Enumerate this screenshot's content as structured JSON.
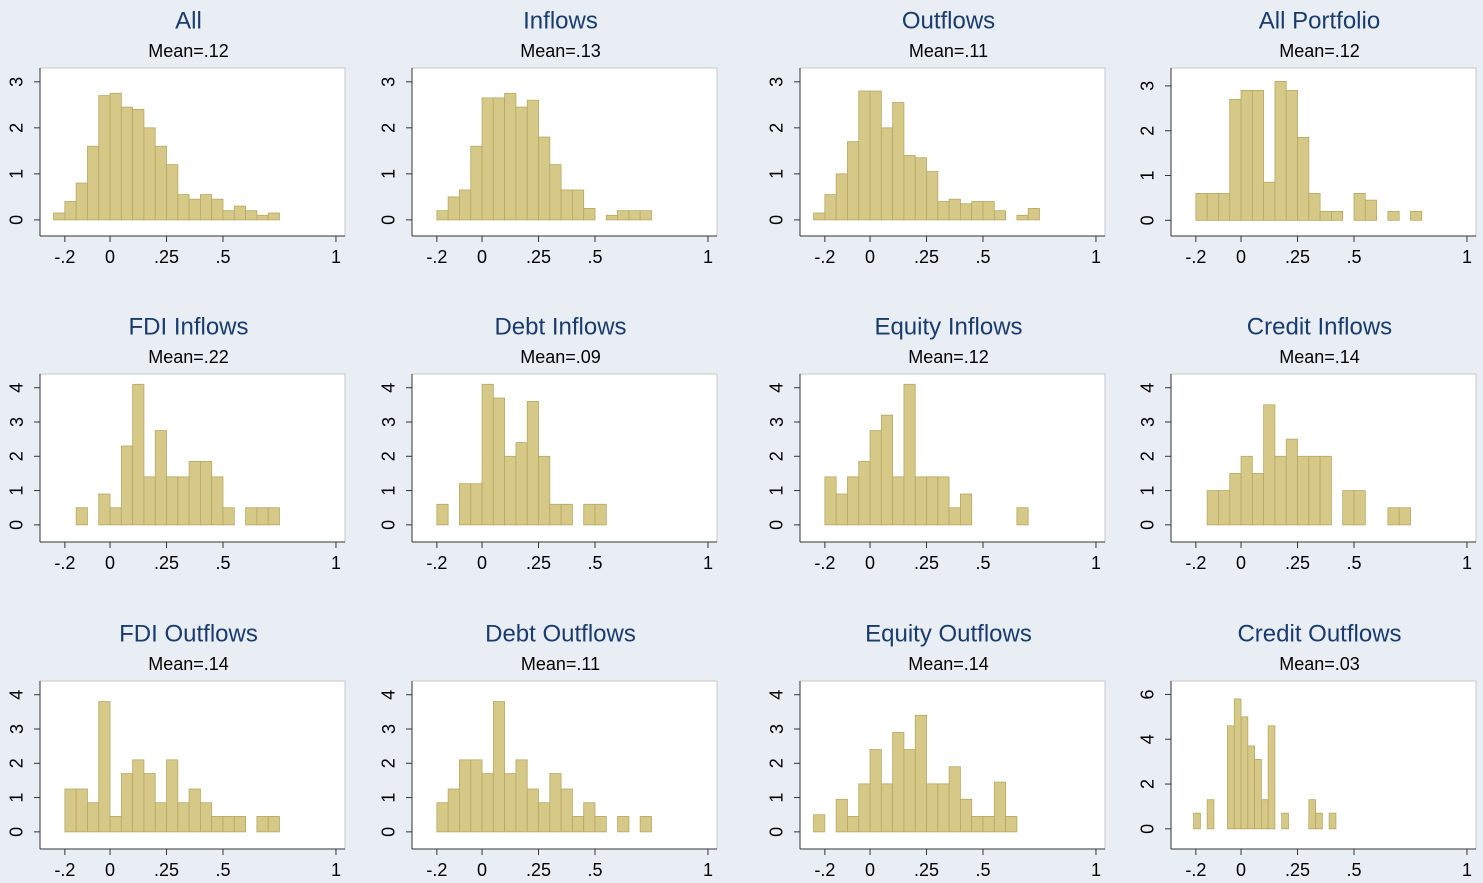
{
  "chart_data": [
    {
      "type": "histogram",
      "title": "All",
      "subtitle": "Mean=.12",
      "color": "#d6c987",
      "bins": [
        -0.25,
        -0.2,
        -0.15,
        -0.1,
        -0.05,
        0,
        0.05,
        0.1,
        0.15,
        0.2,
        0.25,
        0.3,
        0.35,
        0.4,
        0.45,
        0.5,
        0.55,
        0.6,
        0.65,
        0.7,
        0.75
      ],
      "values": [
        0.15,
        0.4,
        0.8,
        1.6,
        2.7,
        2.75,
        2.45,
        2.4,
        2.0,
        1.6,
        1.2,
        0.55,
        0.45,
        0.55,
        0.45,
        0.2,
        0.3,
        0.2,
        0.1,
        0.15
      ],
      "xlim": [
        -0.31,
        1.04
      ],
      "xticks": [
        {
          "value": -0.2,
          "label": "-.2"
        },
        0,
        {
          "value": 0.25,
          "label": ".25"
        },
        {
          "value": 0.5,
          "label": ".5"
        },
        1
      ],
      "ylim": [
        -0.35,
        3.3
      ],
      "yticks": [
        0,
        1,
        2,
        3
      ]
    },
    {
      "type": "histogram",
      "title": "Inflows",
      "subtitle": "Mean=.13",
      "color": "#d6c987",
      "bins": [
        -0.2,
        -0.15,
        -0.1,
        -0.05,
        0,
        0.05,
        0.1,
        0.15,
        0.2,
        0.25,
        0.3,
        0.35,
        0.4,
        0.45,
        0.5,
        0.55,
        0.6,
        0.65,
        0.7,
        0.75
      ],
      "values": [
        0.2,
        0.5,
        0.65,
        1.6,
        2.65,
        2.65,
        2.75,
        2.45,
        2.6,
        1.8,
        1.2,
        0.65,
        0.65,
        0.25,
        0,
        0.1,
        0.2,
        0.2,
        0.2
      ],
      "xlim": [
        -0.31,
        1.04
      ],
      "xticks": [
        {
          "value": -0.2,
          "label": "-.2"
        },
        0,
        {
          "value": 0.25,
          "label": ".25"
        },
        {
          "value": 0.5,
          "label": ".5"
        },
        1
      ],
      "ylim": [
        -0.35,
        3.3
      ],
      "yticks": [
        0,
        1,
        2,
        3
      ]
    },
    {
      "type": "histogram",
      "title": "Outflows",
      "subtitle": "Mean=.11",
      "color": "#d6c987",
      "bins": [
        -0.25,
        -0.2,
        -0.15,
        -0.1,
        -0.05,
        0,
        0.05,
        0.1,
        0.15,
        0.2,
        0.25,
        0.3,
        0.35,
        0.4,
        0.45,
        0.5,
        0.55,
        0.6,
        0.65,
        0.7,
        0.75
      ],
      "values": [
        0.15,
        0.55,
        1.0,
        1.7,
        2.8,
        2.8,
        2.0,
        2.55,
        1.4,
        1.35,
        1.05,
        0.4,
        0.45,
        0.35,
        0.4,
        0.4,
        0.2,
        0,
        0.1,
        0.25
      ],
      "xlim": [
        -0.31,
        1.04
      ],
      "xticks": [
        {
          "value": -0.2,
          "label": "-.2"
        },
        0,
        {
          "value": 0.25,
          "label": ".25"
        },
        {
          "value": 0.5,
          "label": ".5"
        },
        1
      ],
      "ylim": [
        -0.35,
        3.3
      ],
      "yticks": [
        0,
        1,
        2,
        3
      ]
    },
    {
      "type": "histogram",
      "title": "All Portfolio",
      "subtitle": "Mean=.12",
      "color": "#d6c987",
      "bins": [
        -0.2,
        -0.15,
        -0.1,
        -0.05,
        0,
        0.05,
        0.1,
        0.15,
        0.2,
        0.25,
        0.3,
        0.35,
        0.4,
        0.45,
        0.5,
        0.55,
        0.6,
        0.65,
        0.7,
        0.75,
        0.8
      ],
      "values": [
        0.6,
        0.6,
        0.6,
        2.7,
        2.9,
        2.9,
        0.85,
        3.1,
        2.9,
        1.85,
        0.6,
        0.2,
        0.2,
        0,
        0.6,
        0.45,
        0,
        0.2,
        0,
        0.2
      ],
      "xlim": [
        -0.31,
        1.04
      ],
      "xticks": [
        {
          "value": -0.2,
          "label": "-.2"
        },
        0,
        {
          "value": 0.25,
          "label": ".25"
        },
        {
          "value": 0.5,
          "label": ".5"
        },
        1
      ],
      "ylim": [
        -0.35,
        3.4
      ],
      "yticks": [
        0,
        1,
        2,
        3
      ]
    },
    {
      "type": "histogram",
      "title": "FDI Inflows",
      "subtitle": "Mean=.22",
      "color": "#d6c987",
      "bins": [
        -0.15,
        -0.1,
        -0.05,
        0,
        0.05,
        0.1,
        0.15,
        0.2,
        0.25,
        0.3,
        0.35,
        0.4,
        0.45,
        0.5,
        0.55,
        0.6,
        0.65,
        0.7,
        0.75
      ],
      "values": [
        0.5,
        0,
        0.9,
        0.5,
        2.3,
        4.1,
        1.4,
        2.75,
        1.4,
        1.4,
        1.85,
        1.85,
        1.4,
        0.5,
        0,
        0.5,
        0.5,
        0.5
      ],
      "xlim": [
        -0.31,
        1.04
      ],
      "xticks": [
        {
          "value": -0.2,
          "label": "-.2"
        },
        0,
        {
          "value": 0.25,
          "label": ".25"
        },
        {
          "value": 0.5,
          "label": ".5"
        },
        1
      ],
      "ylim": [
        -0.5,
        4.4
      ],
      "yticks": [
        0,
        1,
        2,
        3,
        4
      ]
    },
    {
      "type": "histogram",
      "title": "Debt Inflows",
      "subtitle": "Mean=.09",
      "color": "#d6c987",
      "bins": [
        -0.2,
        -0.15,
        -0.1,
        -0.05,
        0,
        0.05,
        0.1,
        0.15,
        0.2,
        0.25,
        0.3,
        0.35,
        0.4,
        0.45,
        0.5,
        0.55
      ],
      "values": [
        0.6,
        0,
        1.2,
        1.2,
        4.1,
        3.7,
        2.0,
        2.4,
        3.6,
        2.0,
        0.6,
        0.6,
        0,
        0.6,
        0.6
      ],
      "xlim": [
        -0.31,
        1.04
      ],
      "xticks": [
        {
          "value": -0.2,
          "label": "-.2"
        },
        0,
        {
          "value": 0.25,
          "label": ".25"
        },
        {
          "value": 0.5,
          "label": ".5"
        },
        1
      ],
      "ylim": [
        -0.5,
        4.4
      ],
      "yticks": [
        0,
        1,
        2,
        3,
        4
      ]
    },
    {
      "type": "histogram",
      "title": "Equity Inflows",
      "subtitle": "Mean=.12",
      "color": "#d6c987",
      "bins": [
        -0.2,
        -0.15,
        -0.1,
        -0.05,
        0,
        0.05,
        0.1,
        0.15,
        0.2,
        0.25,
        0.3,
        0.35,
        0.4,
        0.45,
        0.5,
        0.55,
        0.6,
        0.65,
        0.7
      ],
      "values": [
        1.4,
        0.9,
        1.4,
        1.85,
        2.75,
        3.2,
        1.4,
        4.1,
        1.4,
        1.4,
        1.4,
        0.5,
        0.9,
        0,
        0,
        0,
        0,
        0.5
      ],
      "xlim": [
        -0.31,
        1.04
      ],
      "xticks": [
        {
          "value": -0.2,
          "label": "-.2"
        },
        0,
        {
          "value": 0.25,
          "label": ".25"
        },
        {
          "value": 0.5,
          "label": ".5"
        },
        1
      ],
      "ylim": [
        -0.5,
        4.4
      ],
      "yticks": [
        0,
        1,
        2,
        3,
        4
      ]
    },
    {
      "type": "histogram",
      "title": "Credit Inflows",
      "subtitle": "Mean=.14",
      "color": "#d6c987",
      "bins": [
        -0.15,
        -0.1,
        -0.05,
        0,
        0.05,
        0.1,
        0.15,
        0.2,
        0.25,
        0.3,
        0.35,
        0.4,
        0.45,
        0.5,
        0.55,
        0.6,
        0.65,
        0.7,
        0.75
      ],
      "values": [
        1.0,
        1.0,
        1.5,
        2.0,
        1.5,
        3.5,
        2.0,
        2.5,
        2.0,
        2.0,
        2.0,
        0,
        1.0,
        1.0,
        0,
        0,
        0.5,
        0.5
      ],
      "xlim": [
        -0.31,
        1.04
      ],
      "xticks": [
        {
          "value": -0.2,
          "label": "-.2"
        },
        0,
        {
          "value": 0.25,
          "label": ".25"
        },
        {
          "value": 0.5,
          "label": ".5"
        },
        1
      ],
      "ylim": [
        -0.5,
        4.4
      ],
      "yticks": [
        0,
        1,
        2,
        3,
        4
      ]
    },
    {
      "type": "histogram",
      "title": "FDI Outflows",
      "subtitle": "Mean=.14",
      "color": "#d6c987",
      "bins": [
        -0.2,
        -0.15,
        -0.1,
        -0.05,
        0,
        0.05,
        0.1,
        0.15,
        0.2,
        0.25,
        0.3,
        0.35,
        0.4,
        0.45,
        0.5,
        0.55,
        0.6,
        0.65,
        0.7,
        0.75
      ],
      "values": [
        1.25,
        1.25,
        0.85,
        3.8,
        0.45,
        1.7,
        2.1,
        1.7,
        0.85,
        2.1,
        0.85,
        1.25,
        0.85,
        0.45,
        0.45,
        0.45,
        0,
        0.45,
        0.45
      ],
      "xlim": [
        -0.31,
        1.04
      ],
      "xticks": [
        {
          "value": -0.2,
          "label": "-.2"
        },
        0,
        {
          "value": 0.25,
          "label": ".25"
        },
        {
          "value": 0.5,
          "label": ".5"
        },
        1
      ],
      "ylim": [
        -0.5,
        4.4
      ],
      "yticks": [
        0,
        1,
        2,
        3,
        4
      ]
    },
    {
      "type": "histogram",
      "title": "Debt Outflows",
      "subtitle": "Mean=.11",
      "color": "#d6c987",
      "bins": [
        -0.2,
        -0.15,
        -0.1,
        -0.05,
        0,
        0.05,
        0.1,
        0.15,
        0.2,
        0.25,
        0.3,
        0.35,
        0.4,
        0.45,
        0.5,
        0.55,
        0.6,
        0.65,
        0.7,
        0.75
      ],
      "values": [
        0.85,
        1.25,
        2.1,
        2.1,
        1.7,
        3.8,
        1.7,
        2.1,
        1.25,
        0.85,
        1.7,
        1.25,
        0.45,
        0.85,
        0.45,
        0,
        0.45,
        0,
        0.45
      ],
      "xlim": [
        -0.31,
        1.04
      ],
      "xticks": [
        {
          "value": -0.2,
          "label": "-.2"
        },
        0,
        {
          "value": 0.25,
          "label": ".25"
        },
        {
          "value": 0.5,
          "label": ".5"
        },
        1
      ],
      "ylim": [
        -0.5,
        4.4
      ],
      "yticks": [
        0,
        1,
        2,
        3,
        4
      ]
    },
    {
      "type": "histogram",
      "title": "Equity Outflows",
      "subtitle": "Mean=.14",
      "color": "#d6c987",
      "bins": [
        -0.25,
        -0.2,
        -0.15,
        -0.1,
        -0.05,
        0,
        0.05,
        0.1,
        0.15,
        0.2,
        0.25,
        0.3,
        0.35,
        0.4,
        0.45,
        0.5,
        0.55,
        0.6,
        0.65
      ],
      "values": [
        0.5,
        0,
        0.95,
        0.45,
        1.4,
        2.4,
        1.4,
        2.9,
        2.4,
        3.4,
        1.4,
        1.4,
        1.9,
        0.95,
        0.45,
        0.45,
        1.45,
        0.45
      ],
      "xlim": [
        -0.31,
        1.04
      ],
      "xticks": [
        {
          "value": -0.2,
          "label": "-.2"
        },
        0,
        {
          "value": 0.25,
          "label": ".25"
        },
        {
          "value": 0.5,
          "label": ".5"
        },
        1
      ],
      "ylim": [
        -0.5,
        4.4
      ],
      "yticks": [
        0,
        1,
        2,
        3,
        4
      ]
    },
    {
      "type": "histogram",
      "title": "Credit Outflows",
      "subtitle": "Mean=.03",
      "color": "#d6c987",
      "bins": [
        -0.21,
        -0.18,
        -0.15,
        -0.12,
        -0.09,
        -0.06,
        -0.03,
        0,
        0.03,
        0.06,
        0.09,
        0.12,
        0.15,
        0.18,
        0.21,
        0.24,
        0.27,
        0.3,
        0.33,
        0.36,
        0.39,
        0.42
      ],
      "values": [
        0.7,
        0,
        1.3,
        0,
        0,
        4.6,
        5.8,
        5.0,
        3.7,
        3.1,
        1.3,
        4.6,
        0,
        0.7,
        0,
        0,
        0,
        1.3,
        0.7,
        0,
        0.7
      ],
      "xlim": [
        -0.31,
        1.04
      ],
      "xticks": [
        {
          "value": -0.2,
          "label": "-.2"
        },
        0,
        {
          "value": 0.25,
          "label": ".25"
        },
        {
          "value": 0.5,
          "label": ".5"
        },
        1
      ],
      "ylim": [
        -0.9,
        6.6
      ],
      "yticks": [
        0,
        2,
        4,
        6
      ]
    }
  ]
}
